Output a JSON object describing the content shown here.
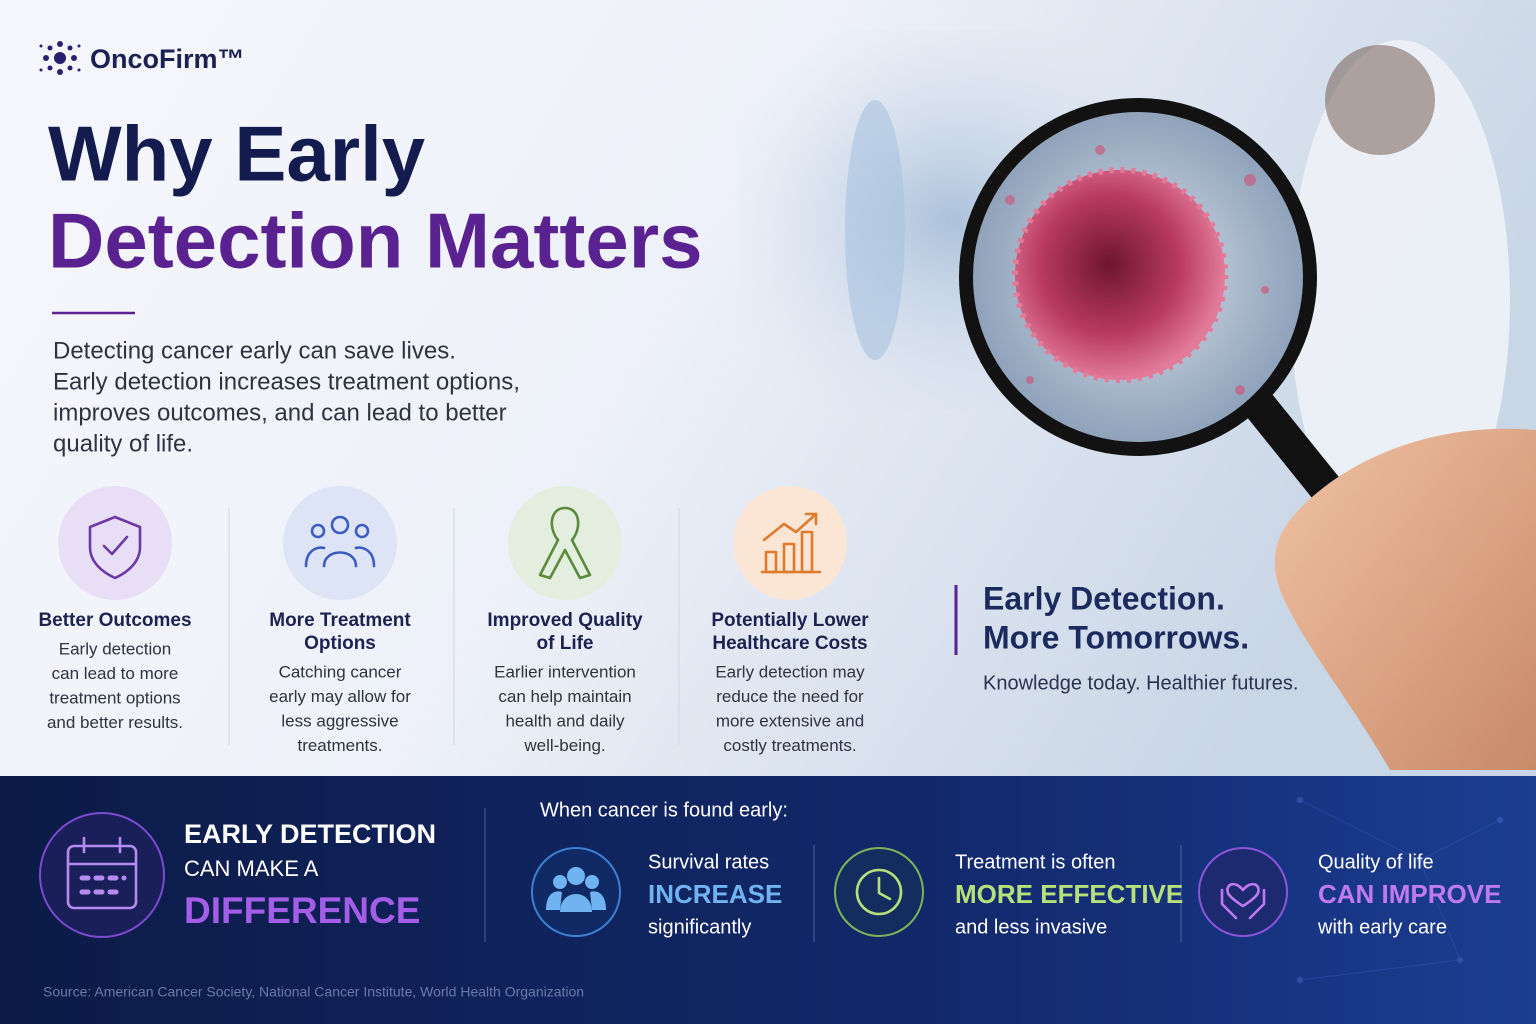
{
  "brand": {
    "name": "OncoFirm™"
  },
  "header": {
    "title_line1": "Why Early",
    "title_line2": "Detection Matters",
    "intro": [
      "Detecting cancer early can save lives.",
      "Early detection increases treatment options,",
      "improves outcomes, and can lead to better",
      "quality of life."
    ]
  },
  "benefits": [
    {
      "title": [
        "Better Outcomes"
      ],
      "text": [
        "Early detection",
        "can lead to more",
        "treatment options",
        "and better results."
      ]
    },
    {
      "title": [
        "More Treatment",
        "Options"
      ],
      "text": [
        "Catching cancer",
        "early may allow for",
        "less aggressive",
        "treatments."
      ]
    },
    {
      "title": [
        "Improved Quality",
        "of Life"
      ],
      "text": [
        "Earlier intervention",
        "can help maintain",
        "health and daily",
        "well-being."
      ]
    },
    {
      "title": [
        "Potentially Lower",
        "Healthcare Costs"
      ],
      "text": [
        "Early detection may",
        "reduce the need for",
        "more extensive and",
        "costly treatments."
      ]
    }
  ],
  "tagline": {
    "title": [
      "Early Detection.",
      "More Tomorrows."
    ],
    "subtitle": "Knowledge today. Healthier futures."
  },
  "banner": {
    "lead": [
      "EARLY DETECTION",
      "CAN MAKE A",
      "DIFFERENCE"
    ],
    "intro": "When cancer is found early:",
    "stats": [
      {
        "line1": "Survival rates",
        "highlight": "INCREASE",
        "line3": "significantly"
      },
      {
        "line1": "Treatment is often",
        "highlight": "MORE EFFECTIVE",
        "line3": "and less invasive"
      },
      {
        "line1": "Quality of life",
        "highlight": "CAN IMPROVE",
        "line3": "with early care"
      }
    ]
  },
  "source": "Source: American Cancer Society, National Cancer Institute, World Health Organization"
}
